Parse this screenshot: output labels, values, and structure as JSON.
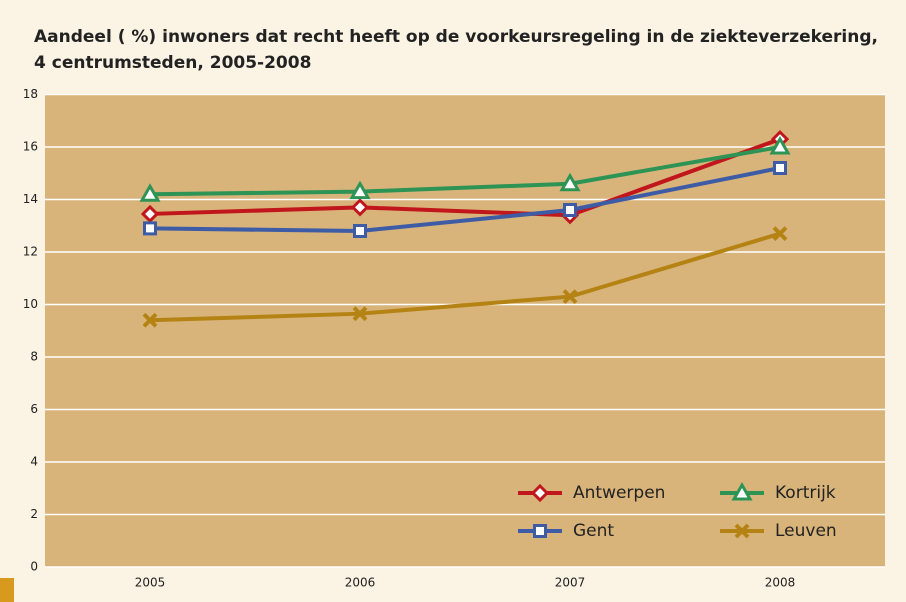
{
  "chart_data": {
    "type": "line",
    "title": "Aandeel ( %) inwoners dat recht heeft op de voorkeursregeling in de ziekteverzekering, 4 centrumsteden, 2005-2008",
    "categories": [
      "2005",
      "2006",
      "2007",
      "2008"
    ],
    "series": [
      {
        "name": "Antwerpen",
        "color": "#c0161c",
        "marker": "diamond",
        "values": [
          13.45,
          13.7,
          13.4,
          16.3
        ]
      },
      {
        "name": "Kortrijk",
        "color": "#2e9455",
        "marker": "triangle",
        "values": [
          14.2,
          14.3,
          14.6,
          16.0
        ]
      },
      {
        "name": "Gent",
        "color": "#3d5ca5",
        "marker": "square",
        "values": [
          12.9,
          12.8,
          13.6,
          15.2
        ]
      },
      {
        "name": "Leuven",
        "color": "#b58314",
        "marker": "x",
        "values": [
          9.4,
          9.65,
          10.3,
          12.7
        ]
      }
    ],
    "ylim": [
      0,
      18
    ],
    "yticks": [
      0,
      2,
      4,
      6,
      8,
      10,
      12,
      14,
      16,
      18
    ],
    "grid": true,
    "legend": "lower right"
  }
}
